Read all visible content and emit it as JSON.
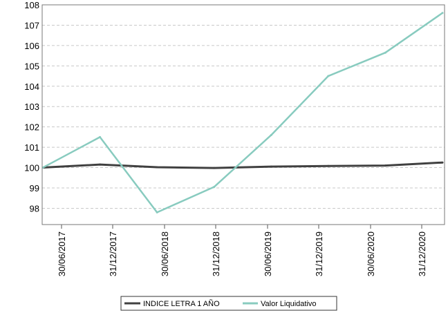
{
  "chart_data": {
    "type": "line",
    "x": [
      "30/06/2017",
      "31/12/2017",
      "30/06/2018",
      "31/12/2018",
      "30/06/2019",
      "31/12/2019",
      "30/06/2020",
      "31/12/2020"
    ],
    "yticks": [
      "98",
      "99",
      "100",
      "101",
      "102",
      "103",
      "104",
      "105",
      "106",
      "107",
      "108"
    ],
    "ylim": [
      97.2,
      108
    ],
    "grid": true,
    "legend_position": "bottom",
    "series": [
      {
        "name": "INDICE LETRA 1 AÑO",
        "color": "#404040",
        "values": [
          100.0,
          100.15,
          100.02,
          99.98,
          100.05,
          100.08,
          100.1,
          100.25
        ]
      },
      {
        "name": "Valor Liquidativo",
        "color": "#88cbbf",
        "values": [
          100.0,
          101.5,
          97.8,
          99.05,
          101.6,
          104.5,
          105.65,
          107.6
        ]
      }
    ]
  }
}
